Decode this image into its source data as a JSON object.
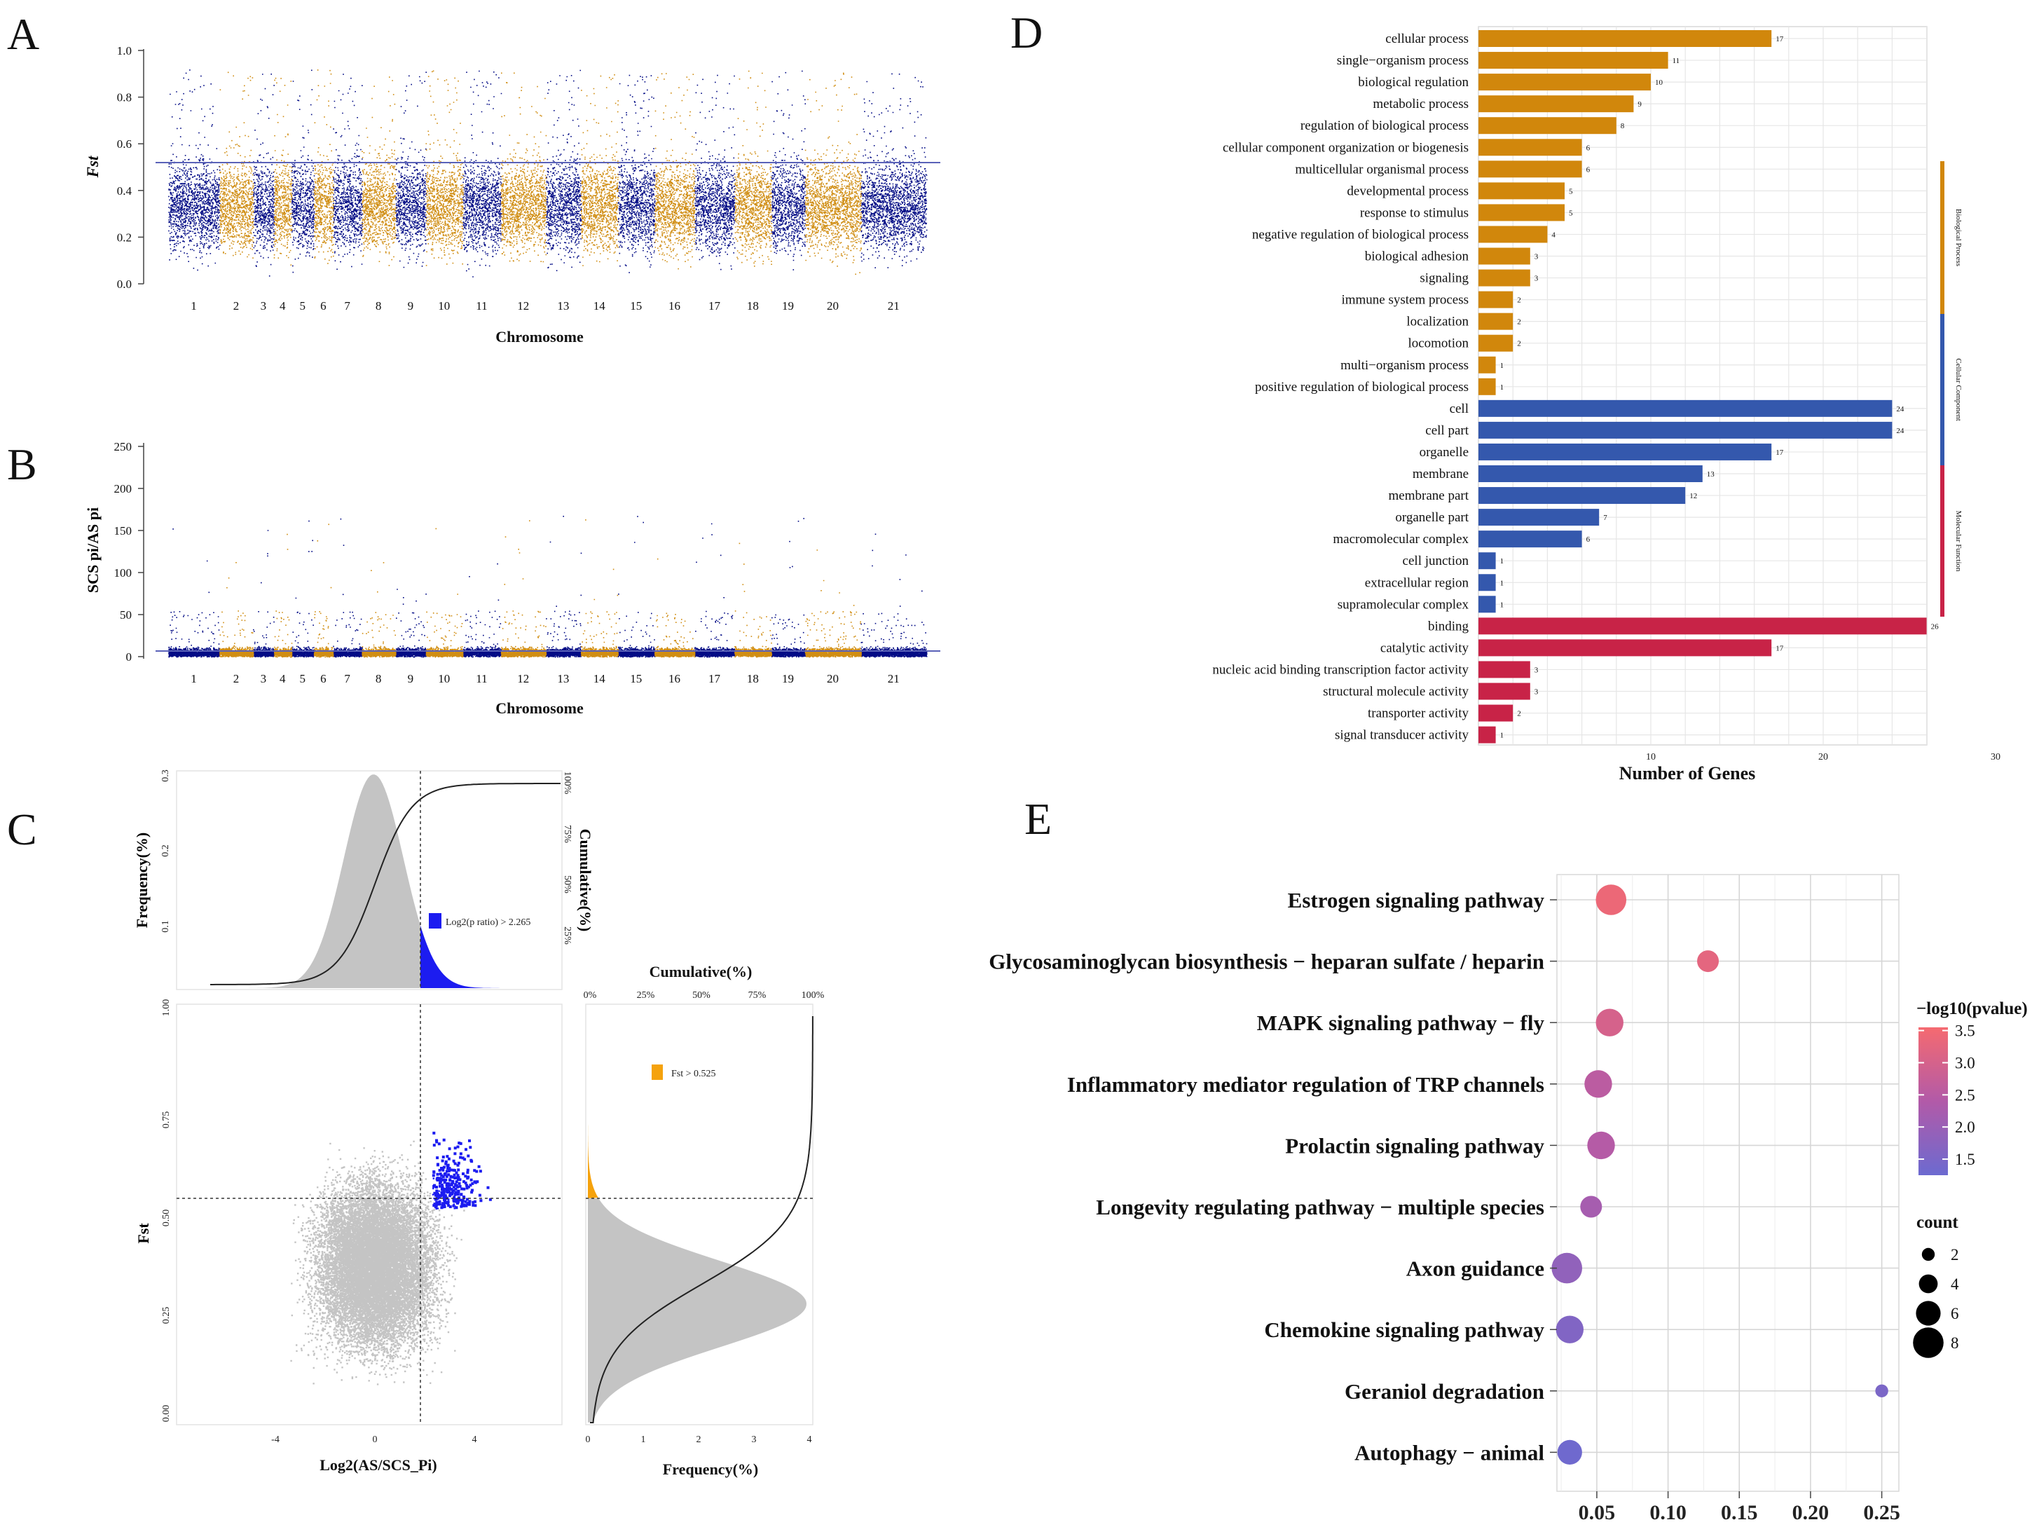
{
  "panels": {
    "A": "A",
    "B": "B",
    "C": "C",
    "D": "D",
    "E": "E"
  },
  "colors": {
    "navy": "#020b85",
    "gold": "#d08d12",
    "bp": "#d1870c",
    "cc": "#3458ad",
    "mf": "#c82347",
    "grey": "#c4c4c4",
    "blue": "#1c1cf0",
    "orange": "#f5a20d"
  },
  "chart_data": [
    {
      "panel": "A",
      "type": "scatter",
      "title": "",
      "xlabel": "Chromosome",
      "ylabel": "Fst",
      "ylim": [
        0,
        1.0
      ],
      "yticks": [
        "0.0",
        "0.2",
        "0.4",
        "0.6",
        "0.8",
        "1.0"
      ],
      "threshold": 0.525,
      "categories": [
        "1",
        "2",
        "3",
        "4",
        "5",
        "6",
        "7",
        "8",
        "9",
        "10",
        "11",
        "12",
        "13",
        "14",
        "15",
        "16",
        "17",
        "18",
        "19",
        "20",
        "21"
      ]
    },
    {
      "panel": "B",
      "type": "scatter",
      "xlabel": "Chromosome",
      "ylabel": "SCS pi/AS pi",
      "ylim": [
        0,
        250
      ],
      "yticks": [
        "0",
        "50",
        "100",
        "150",
        "200",
        "250"
      ],
      "threshold": 8,
      "categories": [
        "1",
        "2",
        "3",
        "4",
        "5",
        "6",
        "7",
        "8",
        "9",
        "10",
        "11",
        "12",
        "13",
        "14",
        "15",
        "16",
        "17",
        "18",
        "19",
        "20",
        "21"
      ]
    },
    {
      "panel": "C",
      "type": "scatter",
      "xlabel": "Log2(AS/SCS_Pi)",
      "ylabel": "Fst",
      "xticks": [
        "-4",
        "0",
        "4"
      ],
      "yticks": [
        "0.00",
        "0.25",
        "0.50",
        "0.75",
        "1.00"
      ],
      "top_hist": {
        "ylabel": "Frequency(%)",
        "yticks": [
          "0.1",
          "0.2",
          "0.3"
        ],
        "cum_label": "Cumulative(%)",
        "cum_ticks": [
          "25%",
          "50%",
          "75%",
          "100%"
        ],
        "legend": "Log2(p ratio) > 2.265",
        "threshold": 2.265
      },
      "right_hist": {
        "xlabel": "Frequency(%)",
        "xticks": [
          "0",
          "1",
          "2",
          "3",
          "4"
        ],
        "cum_label": "Cumulative(%)",
        "cum_ticks": [
          "0%",
          "25%",
          "50%",
          "75%",
          "100%"
        ],
        "legend": "Fst > 0.525",
        "threshold": 0.525
      }
    },
    {
      "panel": "D",
      "type": "bar",
      "xlabel": "Number of Genes",
      "xticks": [
        "10",
        "20",
        "30"
      ],
      "groups": [
        {
          "name": "Biological Process",
          "items": [
            {
              "term": "cellular process",
              "value": 17
            },
            {
              "term": "single−organism process",
              "value": 11
            },
            {
              "term": "biological regulation",
              "value": 10
            },
            {
              "term": "metabolic process",
              "value": 9
            },
            {
              "term": "regulation of biological process",
              "value": 8
            },
            {
              "term": "cellular component organization or biogenesis",
              "value": 6
            },
            {
              "term": "multicellular organismal process",
              "value": 6
            },
            {
              "term": "developmental process",
              "value": 5
            },
            {
              "term": "response to stimulus",
              "value": 5
            },
            {
              "term": "negative regulation of biological process",
              "value": 4
            },
            {
              "term": "biological adhesion",
              "value": 3
            },
            {
              "term": "signaling",
              "value": 3
            },
            {
              "term": "immune system process",
              "value": 2
            },
            {
              "term": "localization",
              "value": 2
            },
            {
              "term": "locomotion",
              "value": 2
            },
            {
              "term": "multi−organism process",
              "value": 1
            },
            {
              "term": "positive regulation of biological process",
              "value": 1
            }
          ]
        },
        {
          "name": "Cellular Component",
          "items": [
            {
              "term": "cell",
              "value": 24
            },
            {
              "term": "cell part",
              "value": 24
            },
            {
              "term": "organelle",
              "value": 17
            },
            {
              "term": "membrane",
              "value": 13
            },
            {
              "term": "membrane part",
              "value": 12
            },
            {
              "term": "organelle part",
              "value": 7
            },
            {
              "term": "macromolecular complex",
              "value": 6
            },
            {
              "term": "cell junction",
              "value": 1
            },
            {
              "term": "extracellular region",
              "value": 1
            },
            {
              "term": "supramolecular complex",
              "value": 1
            }
          ]
        },
        {
          "name": "Molecular Function",
          "items": [
            {
              "term": "binding",
              "value": 26
            },
            {
              "term": "catalytic activity",
              "value": 17
            },
            {
              "term": "nucleic acid binding transcription factor activity",
              "value": 3
            },
            {
              "term": "structural molecule activity",
              "value": 3
            },
            {
              "term": "transporter activity",
              "value": 2
            },
            {
              "term": "signal transducer activity",
              "value": 1
            }
          ]
        }
      ]
    },
    {
      "panel": "E",
      "type": "scatter",
      "xlabel": "",
      "xticks": [
        "0.05",
        "0.10",
        "0.15",
        "0.20",
        "0.25"
      ],
      "xlim": [
        0.022,
        0.262
      ],
      "points": [
        {
          "term": "Estrogen signaling pathway",
          "x": 0.06,
          "count": 8,
          "p": 3.4
        },
        {
          "term": "Glycosaminoglycan biosynthesis − heparan sulfate / heparin",
          "x": 0.128,
          "count": 5,
          "p": 3.25
        },
        {
          "term": "MAPK signaling pathway − fly",
          "x": 0.059,
          "count": 7,
          "p": 3.0
        },
        {
          "term": "Inflammatory mediator regulation of TRP channels",
          "x": 0.051,
          "count": 7,
          "p": 2.55
        },
        {
          "term": "Prolactin signaling pathway",
          "x": 0.053,
          "count": 7,
          "p": 2.45
        },
        {
          "term": "Longevity regulating pathway − multiple species",
          "x": 0.046,
          "count": 5,
          "p": 2.2
        },
        {
          "term": "Axon guidance",
          "x": 0.029,
          "count": 8,
          "p": 1.85
        },
        {
          "term": "Chemokine signaling pathway",
          "x": 0.031,
          "count": 7,
          "p": 1.6
        },
        {
          "term": "Geraniol degradation",
          "x": 0.25,
          "count": 2,
          "p": 1.5
        },
        {
          "term": "Autophagy − animal",
          "x": 0.031,
          "count": 6,
          "p": 1.3
        }
      ],
      "color_legend": {
        "title": "−log10(pvalue)",
        "ticks": [
          "1.5",
          "2.0",
          "2.5",
          "3.0",
          "3.5"
        ],
        "range": [
          1.25,
          3.55
        ]
      },
      "size_legend": {
        "title": "count",
        "ticks": [
          "2",
          "4",
          "6",
          "8"
        ]
      }
    }
  ]
}
